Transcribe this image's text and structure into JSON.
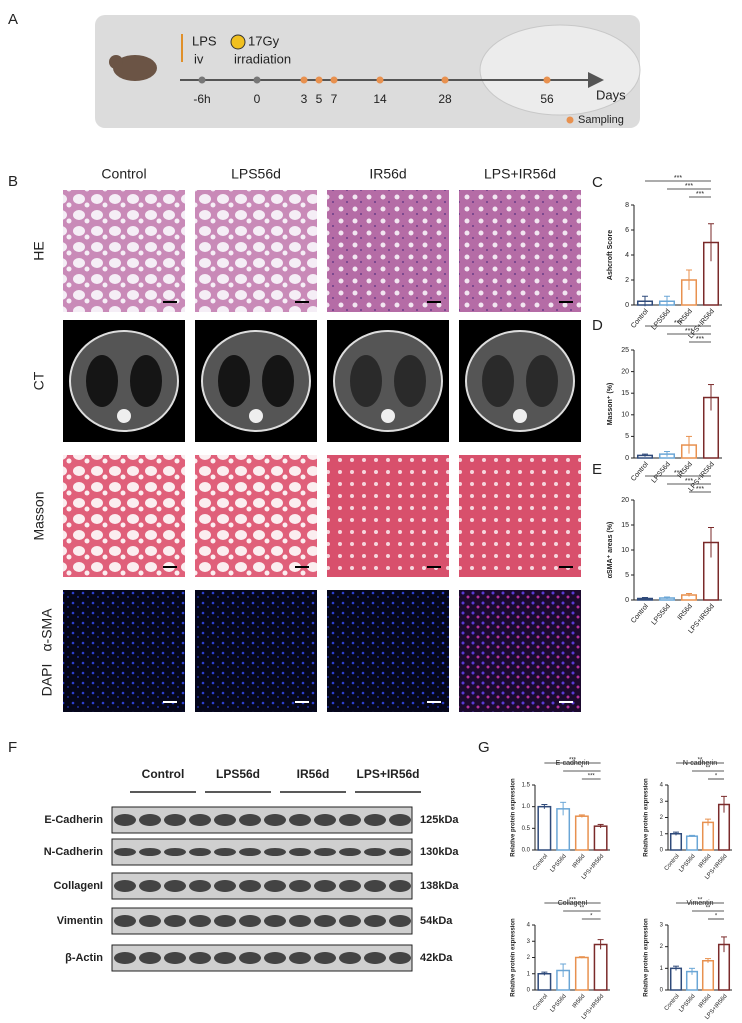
{
  "panel_labels": [
    "A",
    "B",
    "C",
    "D",
    "E",
    "F",
    "G"
  ],
  "panel_a": {
    "lps": "LPS",
    "route": "iv",
    "dose": "17Gy",
    "irradiation": "irradiation",
    "timepoints": [
      "-6h",
      "0",
      "3",
      "5",
      "7",
      "14",
      "28",
      "56"
    ],
    "axis_label": "Days",
    "legend": "Sampling"
  },
  "panel_b": {
    "columns": [
      "Control",
      "LPS56d",
      "IR56d",
      "LPS+IR56d"
    ],
    "rows": [
      "HE",
      "CT",
      "Masson"
    ],
    "if_labels": [
      "α-SMA",
      "DAPI"
    ]
  },
  "panel_f": {
    "groups": [
      "Control",
      "LPS56d",
      "IR56d",
      "LPS+IR56d"
    ],
    "proteins": [
      "E-Cadherin",
      "N-Cadherin",
      "CollagenI",
      "Vimentin",
      "β-Actin"
    ],
    "sizes": [
      "125kDa",
      "130kDa",
      "138kDa",
      "54kDa",
      "42kDa"
    ]
  },
  "chart_data": [
    {
      "type": "bar",
      "y_label": "Ashcroft Score",
      "categories": [
        "Control",
        "LPS56d",
        "IR56d",
        "LPS+IR56d"
      ],
      "values": [
        0.3,
        0.3,
        2.0,
        5.0
      ],
      "errors": [
        0.4,
        0.4,
        0.8,
        1.5
      ],
      "colors": [
        "#2f4a7a",
        "#6aa6d6",
        "#e8914f",
        "#7a2a2a"
      ],
      "ylim": [
        0,
        8
      ],
      "yticks": [
        0,
        2,
        4,
        6,
        8
      ],
      "significance": [
        "***",
        "***",
        "***"
      ]
    },
    {
      "type": "bar",
      "y_label": "Masson⁺ (%)",
      "categories": [
        "Control",
        "LPS56d",
        "IR56d",
        "LPS+IR56d"
      ],
      "values": [
        0.6,
        0.9,
        3.0,
        14.0
      ],
      "errors": [
        0.3,
        0.6,
        2.0,
        3.0
      ],
      "colors": [
        "#2f4a7a",
        "#6aa6d6",
        "#e8914f",
        "#7a2a2a"
      ],
      "ylim": [
        0,
        25
      ],
      "yticks": [
        0,
        5,
        10,
        15,
        20,
        25
      ],
      "significance": [
        "***",
        "***",
        "***"
      ]
    },
    {
      "type": "bar",
      "y_label": "αSMA⁺ areas (%)",
      "categories": [
        "Control",
        "LPS56d",
        "IR56d",
        "LPS+IR56d"
      ],
      "values": [
        0.3,
        0.4,
        1.0,
        11.5
      ],
      "errors": [
        0.2,
        0.2,
        0.3,
        3.0
      ],
      "colors": [
        "#2f4a7a",
        "#6aa6d6",
        "#e8914f",
        "#7a2a2a"
      ],
      "ylim": [
        0,
        20
      ],
      "yticks": [
        0,
        5,
        10,
        15,
        20
      ],
      "significance": [
        "***",
        "***",
        "***"
      ]
    },
    {
      "type": "bar",
      "title": "E-cadherin",
      "y_label": "Relative protein expression",
      "categories": [
        "Control",
        "LPS56d",
        "IR56d",
        "LPS+IR56d"
      ],
      "values": [
        1.0,
        0.95,
        0.78,
        0.55
      ],
      "errors": [
        0.05,
        0.15,
        0.03,
        0.04
      ],
      "colors": [
        "#2f4a7a",
        "#6aa6d6",
        "#e8914f",
        "#7a2a2a"
      ],
      "ylim": [
        0,
        1.5
      ],
      "yticks": [
        {
          "value": 0,
          "label": "0.0"
        },
        0.5,
        {
          "value": 1,
          "label": "1.0"
        },
        1.5
      ],
      "significance": [
        "***",
        "*",
        "***"
      ]
    },
    {
      "type": "bar",
      "title": "N-cadherin",
      "y_label": "Relative protein expression",
      "categories": [
        "Control",
        "LPS56d",
        "IR56d",
        "LPS+IR56d"
      ],
      "values": [
        1.0,
        0.85,
        1.7,
        2.8
      ],
      "errors": [
        0.1,
        0.05,
        0.2,
        0.5
      ],
      "colors": [
        "#2f4a7a",
        "#6aa6d6",
        "#e8914f",
        "#7a2a2a"
      ],
      "ylim": [
        0,
        4
      ],
      "yticks": [
        0,
        1,
        2,
        3,
        4
      ],
      "significance": [
        "**",
        "**",
        "*"
      ]
    },
    {
      "type": "bar",
      "title": "CollagenI",
      "y_label": "Relative protein expression",
      "categories": [
        "Control",
        "LPS56d",
        "IR56d",
        "LPS+IR56d"
      ],
      "values": [
        1.0,
        1.2,
        2.0,
        2.8
      ],
      "errors": [
        0.1,
        0.4,
        0.05,
        0.3
      ],
      "colors": [
        "#2f4a7a",
        "#6aa6d6",
        "#e8914f",
        "#7a2a2a"
      ],
      "ylim": [
        0,
        4
      ],
      "yticks": [
        0,
        1,
        2,
        3,
        4
      ],
      "significance": [
        "***",
        "**",
        "*"
      ]
    },
    {
      "type": "bar",
      "title": "Vimentin",
      "y_label": "Relative protein expression",
      "categories": [
        "Control",
        "LPS56d",
        "IR56d",
        "LPS+IR56d"
      ],
      "values": [
        1.0,
        0.85,
        1.35,
        2.1
      ],
      "errors": [
        0.1,
        0.15,
        0.1,
        0.35
      ],
      "colors": [
        "#2f4a7a",
        "#6aa6d6",
        "#e8914f",
        "#7a2a2a"
      ],
      "ylim": [
        0,
        3
      ],
      "yticks": [
        0,
        1,
        2,
        3
      ],
      "significance": [
        "**",
        "**",
        "*"
      ]
    }
  ]
}
